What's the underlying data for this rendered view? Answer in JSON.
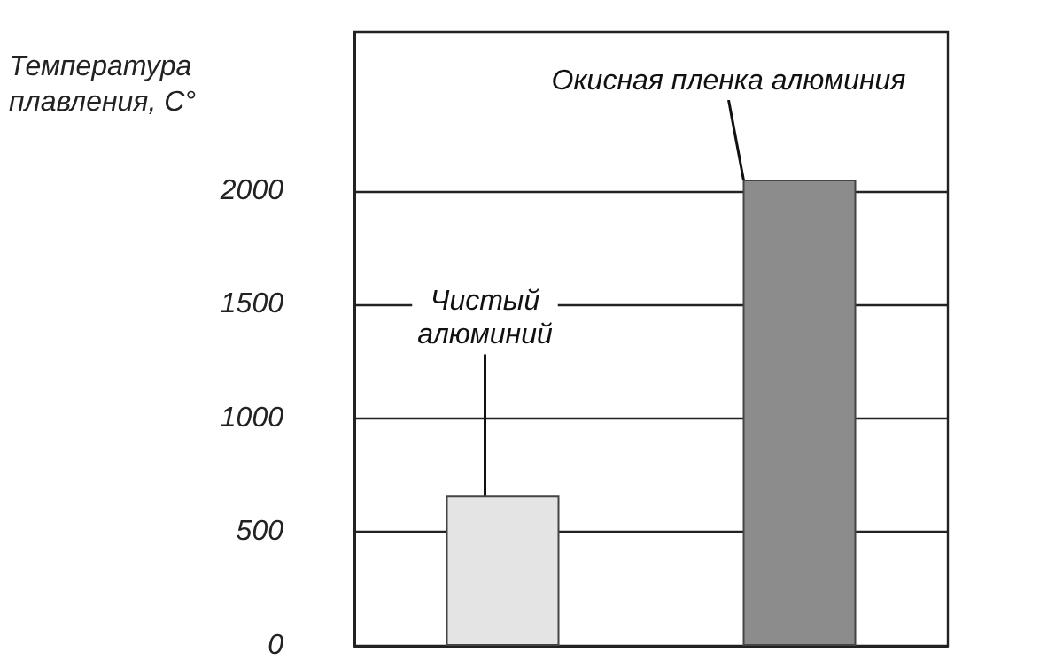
{
  "chart_data": {
    "type": "bar",
    "ylabel": "Температура\nплавления, С°",
    "categories": [
      null,
      null
    ],
    "values": [
      660,
      2050
    ],
    "colors": [
      "#e4e4e4",
      "#8c8c8c"
    ],
    "annotations": [
      "Чистый\nалюминий",
      "Окисная пленка алюминия"
    ],
    "ylim": [
      0,
      2700
    ],
    "yticks": [
      0,
      500,
      1000,
      1500,
      2000
    ],
    "grid": "y"
  }
}
